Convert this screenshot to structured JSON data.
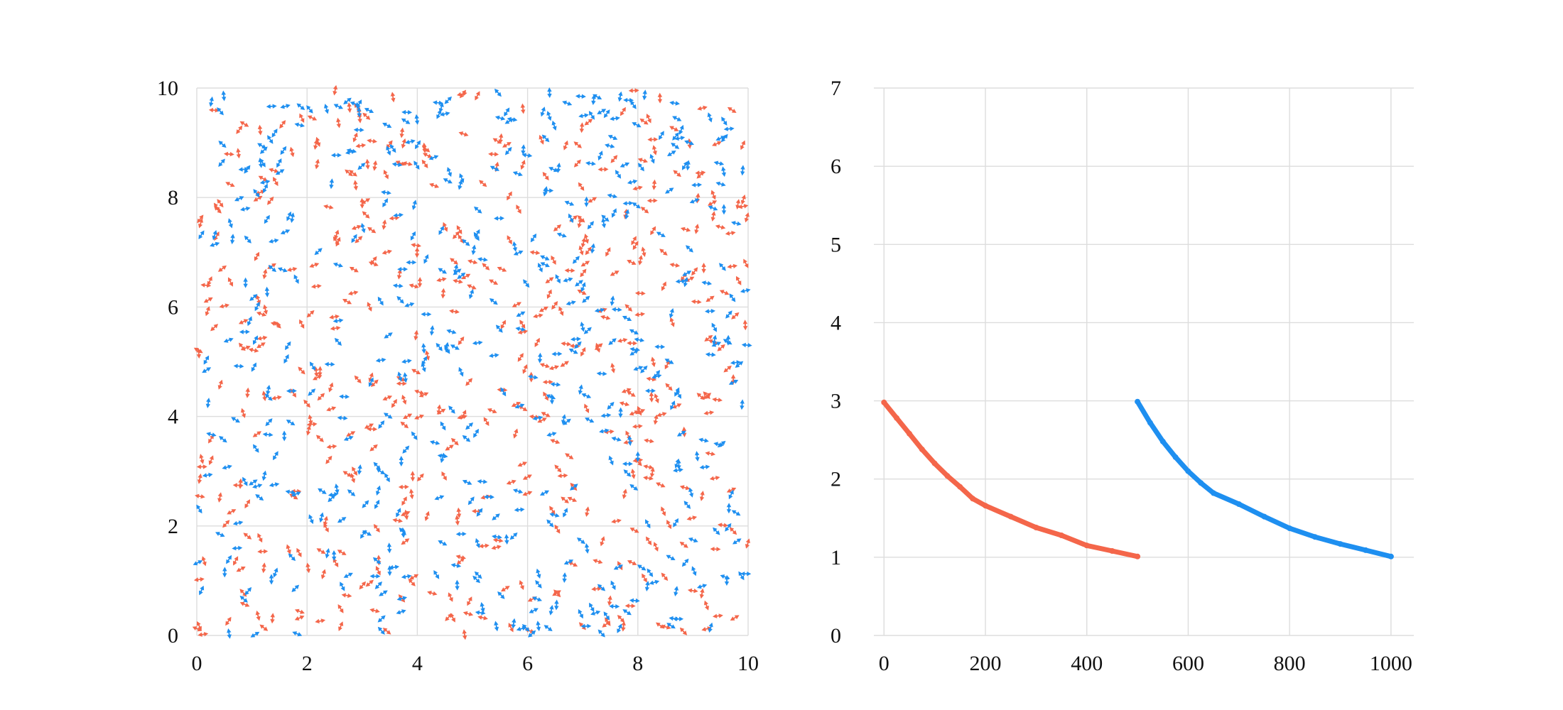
{
  "colors": {
    "red": "#f4664a",
    "blue": "#1e8ff0",
    "grid": "#dddddd",
    "text": "#111111"
  },
  "chart_data": [
    {
      "type": "scatter",
      "subtype": "arrow-field",
      "xlim": [
        0,
        10
      ],
      "ylim": [
        0,
        10
      ],
      "x_ticks": [
        "0",
        "2",
        "4",
        "6",
        "8",
        "10"
      ],
      "y_ticks": [
        "0",
        "2",
        "4",
        "6",
        "8",
        "10"
      ],
      "grid": true,
      "series": [
        {
          "color": "red",
          "count": 500,
          "marker": "double-headed arrow"
        },
        {
          "color": "blue",
          "count": 500,
          "marker": "double-headed arrow"
        }
      ]
    },
    {
      "type": "line",
      "xlim": [
        -20,
        1045
      ],
      "ylim": [
        0,
        7
      ],
      "x_ticks": [
        "0",
        "200",
        "400",
        "600",
        "800",
        "1000"
      ],
      "y_ticks": [
        "0",
        "1",
        "2",
        "3",
        "4",
        "5",
        "6",
        "7"
      ],
      "grid": true,
      "series": [
        {
          "color": "red",
          "x": [
            0,
            25,
            50,
            75,
            100,
            125,
            150,
            175,
            200,
            250,
            300,
            350,
            400,
            450,
            500
          ],
          "y": [
            2.98,
            2.78,
            2.58,
            2.38,
            2.2,
            2.04,
            1.9,
            1.75,
            1.66,
            1.52,
            1.38,
            1.28,
            1.15,
            1.08,
            1.01
          ]
        },
        {
          "color": "blue",
          "x": [
            500,
            525,
            550,
            575,
            600,
            625,
            650,
            700,
            750,
            800,
            850,
            900,
            950,
            1000
          ],
          "y": [
            2.99,
            2.72,
            2.48,
            2.28,
            2.1,
            1.95,
            1.82,
            1.68,
            1.52,
            1.37,
            1.26,
            1.17,
            1.09,
            1.01
          ]
        }
      ]
    }
  ]
}
